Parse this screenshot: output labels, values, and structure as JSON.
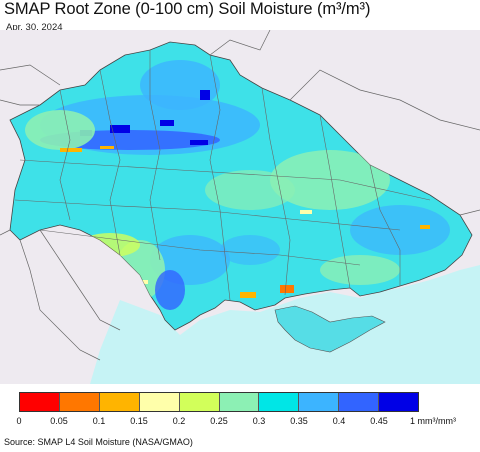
{
  "title": "SMAP Root Zone (0-100 cm) Soil Moisture (m³/m³)",
  "date": "Apr. 30, 2024",
  "legend": {
    "colors": [
      "#ff0000",
      "#ff7700",
      "#ffb400",
      "#ffffaa",
      "#d2ff5a",
      "#8cf0b4",
      "#00e6e6",
      "#3cb4ff",
      "#3264ff",
      "#0000e6"
    ],
    "ticks": [
      "0",
      "0.05",
      "0.1",
      "0.15",
      "0.2",
      "0.25",
      "0.3",
      "0.35",
      "0.4",
      "0.45"
    ],
    "max_label": "1 mm³/mm³"
  },
  "source": "Source: SMAP L4 Soil Moisture (NASA/GMAO)",
  "map": {
    "background_color": "#eeeaf0",
    "sea_color": "#c6f3f5",
    "dominant_color": "#3ee1e8",
    "border_color": "#555555"
  }
}
